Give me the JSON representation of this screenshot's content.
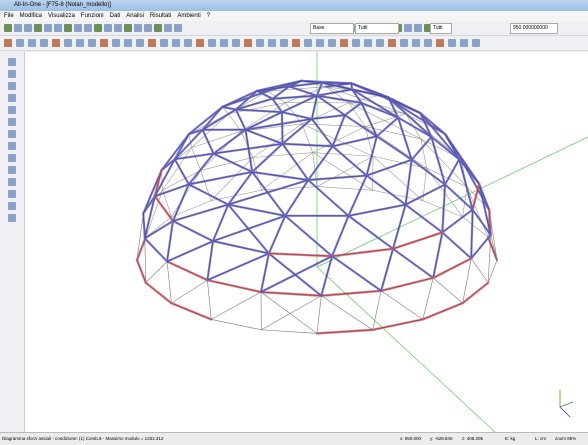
{
  "window": {
    "title": "All-In-One - [F75-8 (Nolan_modello)]"
  },
  "menu": {
    "items": [
      "File",
      "Modifica",
      "Visualizza",
      "Funzioni",
      "Dati",
      "Analisi",
      "Risultati",
      "Ambienti",
      "?"
    ]
  },
  "toolbar": {
    "fields": [
      "Base",
      "Tutti",
      "Tutti",
      "950.000000000"
    ]
  },
  "status": {
    "items": [
      "Diagramma sforzi assiali - condizione: (1) Comb.8 - Massimo modulo = 1333.312",
      "x: 950.000",
      "y: -528.840",
      "z: 408.205",
      "E: kg",
      "L: cm",
      "zoom 85%"
    ]
  }
}
